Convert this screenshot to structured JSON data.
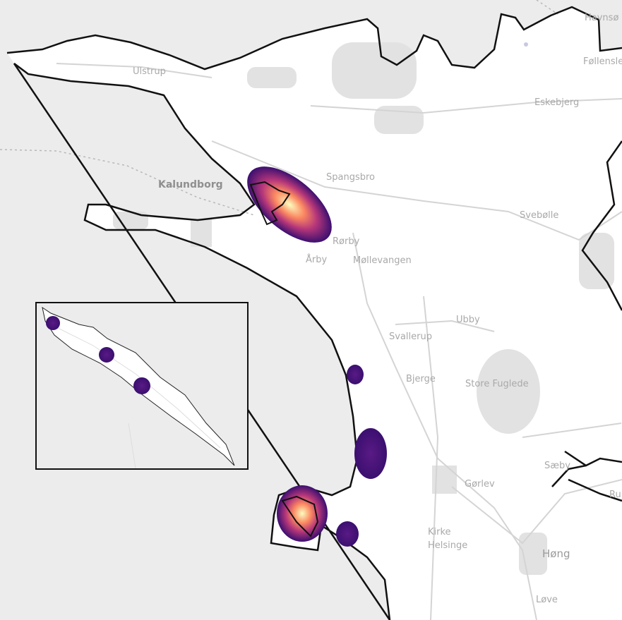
{
  "map": {
    "colors": {
      "sea": "#ececec",
      "land": "#ffffff",
      "border": "#111111",
      "urban": "#dcdcdc",
      "road": "#d2d2d2",
      "heat_low": "#3b0f70",
      "heat_mid": "#b5367a",
      "heat_high": "#fcfdbf"
    },
    "place_labels": {
      "ulstrup": "Ulstrup",
      "kalundborg": "Kalundborg",
      "spangsbro": "Spangsbro",
      "havnso": "Havnsø",
      "follenslev": "Føllenslev",
      "eskebjerg": "Eskebjerg",
      "svebolle": "Svebølle",
      "rorby": "Rørby",
      "arby": "Årby",
      "mollevangen": "Møllevangen",
      "ubby": "Ubby",
      "svallerup": "Svallerup",
      "bjerge": "Bjerge",
      "store_fuglede": "Store Fuglede",
      "saeby": "Sæby",
      "gorlev": "Gørlev",
      "kirke_helsinge": "Kirke\nHelsinge",
      "hong": "Høng",
      "love": "Løve",
      "ruds": "Ru"
    },
    "heatmap_colormap": "magma"
  }
}
